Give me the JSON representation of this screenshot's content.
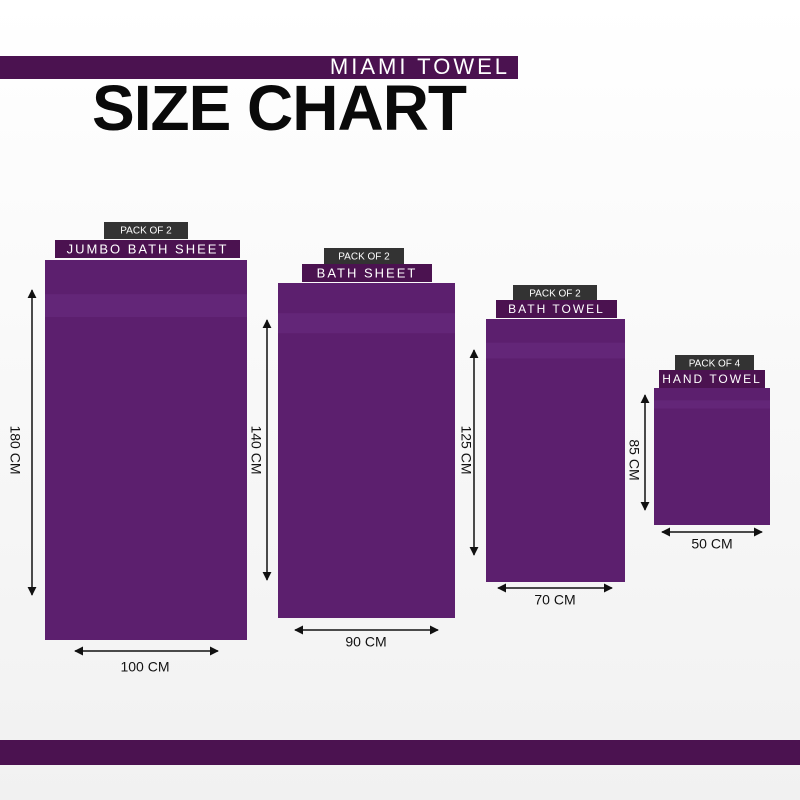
{
  "header": {
    "brand": "MIAMI TOWEL",
    "title": "SIZE CHART"
  },
  "towels": [
    {
      "pack": "PACK OF 2",
      "name": "JUMBO BATH SHEET",
      "height": "180 CM",
      "width": "100 CM"
    },
    {
      "pack": "PACK OF 2",
      "name": "BATH SHEET",
      "height": "140 CM",
      "width": "90 CM"
    },
    {
      "pack": "PACK OF 2",
      "name": "BATH TOWEL",
      "height": "125 CM",
      "width": "70 CM"
    },
    {
      "pack": "PACK OF 4",
      "name": "HAND TOWEL",
      "height": "85 CM",
      "width": "50 CM"
    }
  ]
}
